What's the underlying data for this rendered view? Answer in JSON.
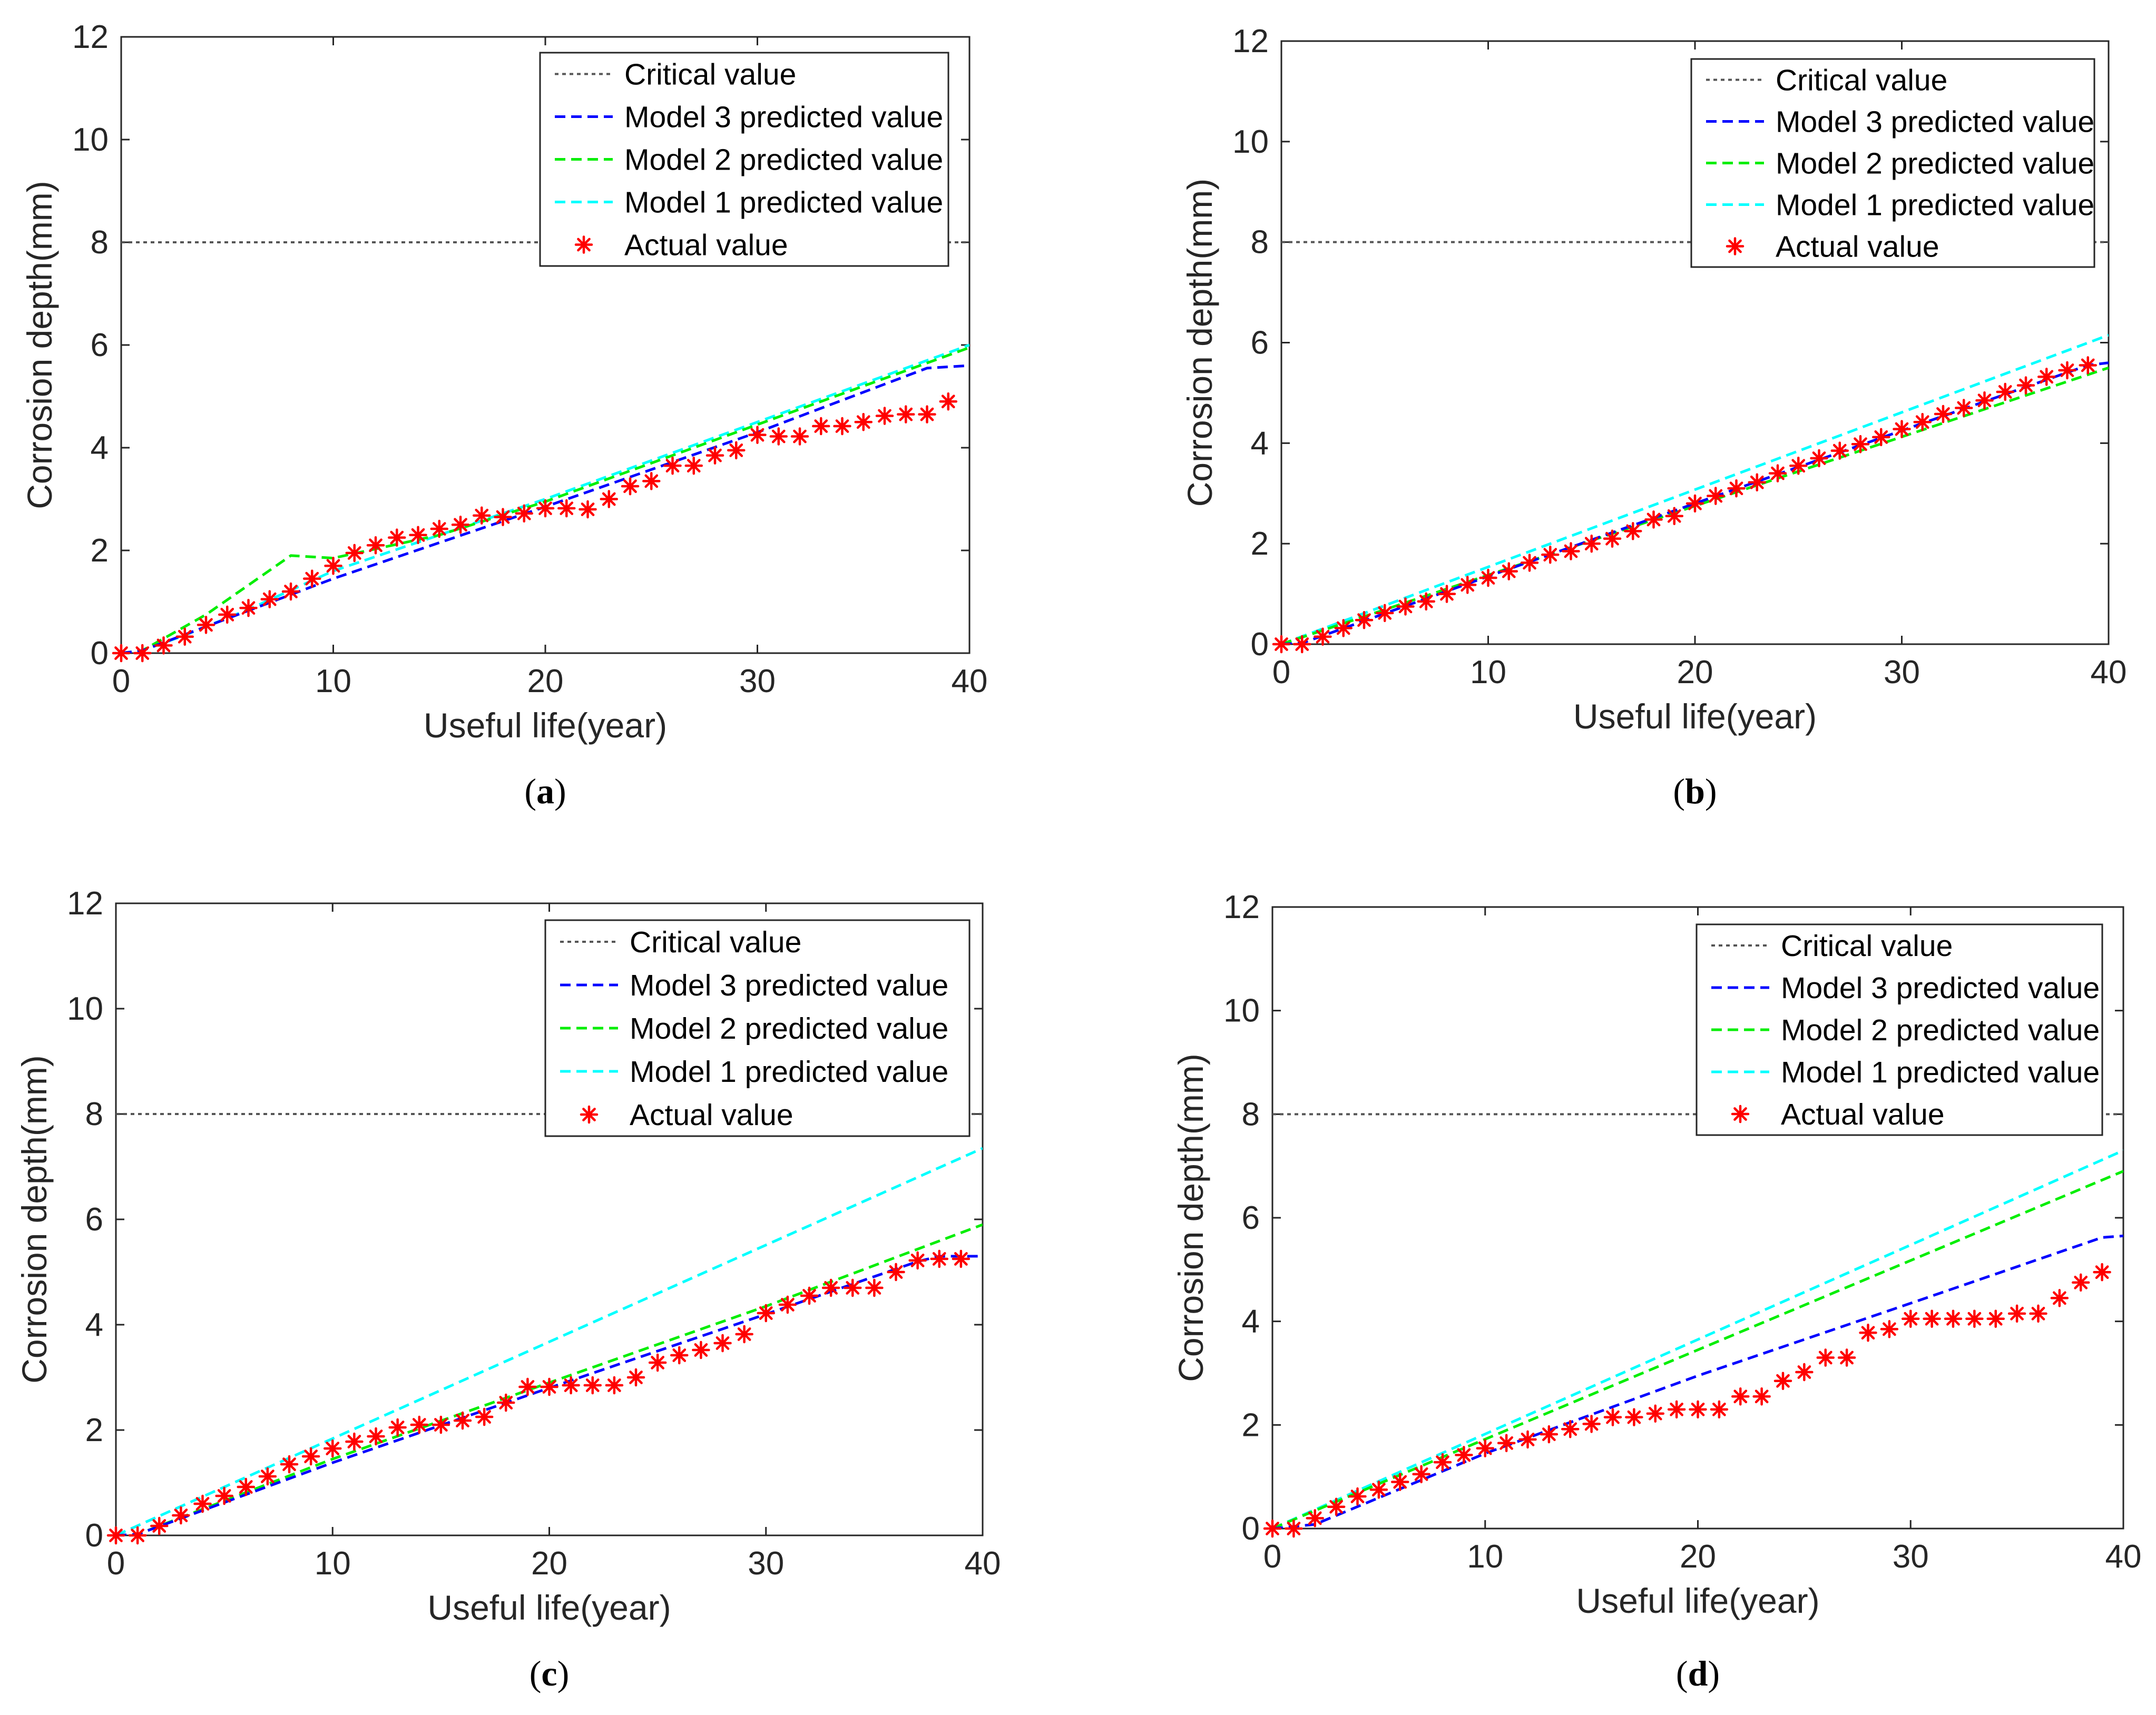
{
  "colors": {
    "critical": "#555555",
    "model3": "#0000ff",
    "model2": "#00ee00",
    "model1": "#00ffff",
    "actual": "#ff0000",
    "axes": "#262626"
  },
  "chart_data": [
    {
      "panel": "a",
      "type": "line",
      "xlabel": "Useful life(year)",
      "ylabel": "Corrosion depth(mm)",
      "xlim": [
        0,
        40
      ],
      "ylim": [
        0,
        12
      ],
      "xticks": [
        0,
        10,
        20,
        30,
        40
      ],
      "yticks": [
        0,
        2,
        4,
        6,
        8,
        10,
        12
      ],
      "legend": [
        "Critical value",
        "Model 3 predicted value",
        "Model 2 predicted value",
        "Model 1 predicted value",
        "Actual value"
      ],
      "critical": 8,
      "series": [
        {
          "name": "Model 3 predicted value",
          "x": [
            0,
            1,
            10,
            20,
            30,
            38,
            40
          ],
          "y": [
            0,
            0.05,
            1.45,
            2.85,
            4.3,
            5.55,
            5.6
          ]
        },
        {
          "name": "Model 2 predicted value",
          "x": [
            0,
            1,
            4,
            8,
            10,
            15,
            20,
            30,
            40
          ],
          "y": [
            0,
            0.05,
            0.75,
            1.9,
            1.85,
            2.3,
            2.95,
            4.45,
            5.95
          ]
        },
        {
          "name": "Model 1 predicted value",
          "x": [
            0,
            1,
            3,
            6,
            10,
            15,
            20,
            30,
            40
          ],
          "y": [
            0,
            0.05,
            0.35,
            0.85,
            1.6,
            2.3,
            3.0,
            4.5,
            6.0
          ]
        },
        {
          "name": "Actual value",
          "x": [
            0,
            1,
            2,
            3,
            4,
            5,
            6,
            7,
            8,
            9,
            10,
            11,
            12,
            13,
            14,
            15,
            16,
            17,
            18,
            19,
            20,
            21,
            22,
            23,
            24,
            25,
            26,
            27,
            28,
            29,
            30,
            31,
            32,
            33,
            34,
            35,
            36,
            37,
            38,
            39
          ],
          "y": [
            0,
            0,
            0.15,
            0.32,
            0.55,
            0.75,
            0.88,
            1.05,
            1.2,
            1.45,
            1.7,
            1.95,
            2.1,
            2.25,
            2.3,
            2.42,
            2.5,
            2.68,
            2.65,
            2.72,
            2.82,
            2.82,
            2.8,
            3.0,
            3.25,
            3.35,
            3.65,
            3.65,
            3.85,
            3.95,
            4.25,
            4.22,
            4.22,
            4.42,
            4.42,
            4.5,
            4.62,
            4.65,
            4.65,
            4.9
          ]
        }
      ]
    },
    {
      "panel": "b",
      "type": "line",
      "xlabel": "Useful life(year)",
      "ylabel": "Corrosion depth(mm)",
      "xlim": [
        0,
        40
      ],
      "ylim": [
        0,
        12
      ],
      "xticks": [
        0,
        10,
        20,
        30,
        40
      ],
      "yticks": [
        0,
        2,
        4,
        6,
        8,
        10,
        12
      ],
      "legend": [
        "Critical value",
        "Model 3 predicted value",
        "Model 2 predicted value",
        "Model 1 predicted value",
        "Actual value"
      ],
      "critical": 8,
      "series": [
        {
          "name": "Model 3 predicted value",
          "x": [
            0,
            1,
            10,
            20,
            30,
            39,
            40
          ],
          "y": [
            0,
            0.02,
            1.35,
            2.8,
            4.25,
            5.55,
            5.6
          ]
        },
        {
          "name": "Model 2 predicted value",
          "x": [
            0,
            40
          ],
          "y": [
            0,
            5.5
          ]
        },
        {
          "name": "Model 1 predicted value",
          "x": [
            0,
            40
          ],
          "y": [
            0,
            6.15
          ]
        },
        {
          "name": "Actual value",
          "x": [
            0,
            1,
            2,
            3,
            4,
            5,
            6,
            7,
            8,
            9,
            10,
            11,
            12,
            13,
            14,
            15,
            16,
            17,
            18,
            19,
            20,
            21,
            22,
            23,
            24,
            25,
            26,
            27,
            28,
            29,
            30,
            31,
            32,
            33,
            34,
            35,
            36,
            37,
            38,
            39
          ],
          "y": [
            0,
            0,
            0.15,
            0.32,
            0.48,
            0.62,
            0.75,
            0.85,
            1.0,
            1.18,
            1.32,
            1.45,
            1.62,
            1.78,
            1.85,
            2.0,
            2.1,
            2.25,
            2.48,
            2.55,
            2.8,
            2.95,
            3.1,
            3.22,
            3.4,
            3.55,
            3.7,
            3.85,
            3.98,
            4.12,
            4.28,
            4.42,
            4.58,
            4.7,
            4.85,
            5.02,
            5.15,
            5.32,
            5.45,
            5.55
          ]
        }
      ]
    },
    {
      "panel": "c",
      "type": "line",
      "xlabel": "Useful life(year)",
      "ylabel": "Corrosion depth(mm)",
      "xlim": [
        0,
        40
      ],
      "ylim": [
        0,
        12
      ],
      "xticks": [
        0,
        10,
        20,
        30,
        40
      ],
      "yticks": [
        0,
        2,
        4,
        6,
        8,
        10,
        12
      ],
      "legend": [
        "Critical value",
        "Model 3 predicted value",
        "Model 2 predicted value",
        "Model 1 predicted value",
        "Actual value"
      ],
      "critical": 8,
      "series": [
        {
          "name": "Model 3 predicted value",
          "x": [
            0,
            1,
            10,
            20,
            30,
            37,
            38,
            40
          ],
          "y": [
            0,
            0.02,
            1.38,
            2.8,
            4.2,
            5.2,
            5.3,
            5.3
          ]
        },
        {
          "name": "Model 2 predicted value",
          "x": [
            0,
            1,
            10,
            20,
            30,
            40
          ],
          "y": [
            0,
            0.02,
            1.45,
            2.9,
            4.35,
            5.9
          ]
        },
        {
          "name": "Model 1 predicted value",
          "x": [
            0,
            40
          ],
          "y": [
            0,
            7.35
          ]
        },
        {
          "name": "Actual value",
          "x": [
            0,
            1,
            2,
            3,
            4,
            5,
            6,
            7,
            8,
            9,
            10,
            11,
            12,
            13,
            14,
            15,
            16,
            17,
            18,
            19,
            20,
            21,
            22,
            23,
            24,
            25,
            26,
            27,
            28,
            29,
            30,
            31,
            32,
            33,
            34,
            35,
            36,
            37,
            38,
            39
          ],
          "y": [
            0,
            0,
            0.18,
            0.38,
            0.6,
            0.75,
            0.92,
            1.12,
            1.35,
            1.5,
            1.65,
            1.78,
            1.88,
            2.05,
            2.1,
            2.1,
            2.18,
            2.25,
            2.52,
            2.82,
            2.82,
            2.85,
            2.85,
            2.85,
            3.0,
            3.28,
            3.42,
            3.52,
            3.65,
            3.82,
            4.22,
            4.38,
            4.55,
            4.7,
            4.7,
            4.7,
            5.0,
            5.22,
            5.25,
            5.25
          ]
        }
      ]
    },
    {
      "panel": "d",
      "type": "line",
      "xlabel": "Useful life(year)",
      "ylabel": "Corrosion depth(mm)",
      "xlim": [
        0,
        40
      ],
      "ylim": [
        0,
        12
      ],
      "xticks": [
        0,
        10,
        20,
        30,
        40
      ],
      "yticks": [
        0,
        2,
        4,
        6,
        8,
        10,
        12
      ],
      "legend": [
        "Critical value",
        "Model 3 predicted value",
        "Model 2 predicted value",
        "Model 1 predicted value",
        "Actual value"
      ],
      "critical": 8,
      "series": [
        {
          "name": "Model 3 predicted value",
          "x": [
            0,
            2,
            10,
            20,
            30,
            39,
            40
          ],
          "y": [
            0,
            0.08,
            1.45,
            2.95,
            4.35,
            5.62,
            5.65
          ]
        },
        {
          "name": "Model 2 predicted value",
          "x": [
            0,
            40
          ],
          "y": [
            0,
            6.9
          ]
        },
        {
          "name": "Model 1 predicted value",
          "x": [
            0,
            40
          ],
          "y": [
            0,
            7.3
          ]
        },
        {
          "name": "Actual value",
          "x": [
            0,
            1,
            2,
            3,
            4,
            5,
            6,
            7,
            8,
            9,
            10,
            11,
            12,
            13,
            14,
            15,
            16,
            17,
            18,
            19,
            20,
            21,
            22,
            23,
            24,
            25,
            26,
            27,
            28,
            29,
            30,
            31,
            32,
            33,
            34,
            35,
            36,
            37,
            38,
            39
          ],
          "y": [
            0,
            0,
            0.2,
            0.42,
            0.62,
            0.75,
            0.9,
            1.05,
            1.28,
            1.42,
            1.55,
            1.65,
            1.72,
            1.82,
            1.92,
            2.02,
            2.15,
            2.15,
            2.22,
            2.3,
            2.3,
            2.3,
            2.55,
            2.55,
            2.85,
            3.02,
            3.3,
            3.3,
            3.78,
            3.85,
            4.05,
            4.05,
            4.05,
            4.05,
            4.05,
            4.15,
            4.15,
            4.45,
            4.75,
            4.95
          ]
        }
      ]
    }
  ]
}
